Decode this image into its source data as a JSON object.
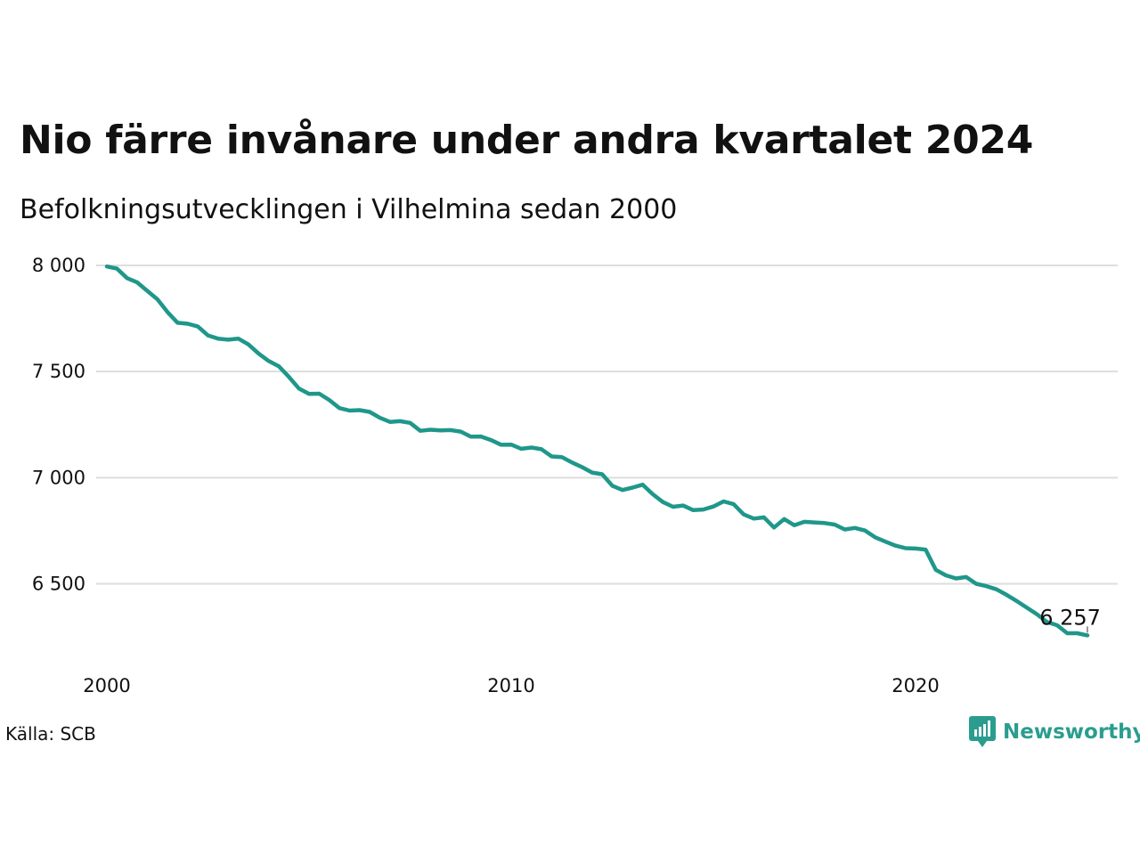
{
  "chart_data": {
    "type": "line",
    "title": "Nio färre invånare under andra kvartalet 2024",
    "subtitle": "Befolkningsutvecklingen i Vilhelmina sedan 2000",
    "xlabel": "",
    "ylabel": "",
    "x_ticks": [
      "2000",
      "2010",
      "2020"
    ],
    "y_ticks": [
      {
        "value": 8000,
        "label": "8 000"
      },
      {
        "value": 7500,
        "label": "7 500"
      },
      {
        "value": 7000,
        "label": "7 000"
      },
      {
        "value": 6500,
        "label": "6 500"
      }
    ],
    "xlim": [
      2000,
      2025
    ],
    "ylim": [
      6200,
      8000
    ],
    "grid": true,
    "legend": "none",
    "line_color": "#1f978a",
    "series": [
      {
        "x": [
          2000.0,
          2000.25,
          2000.5,
          2000.75,
          2001.0,
          2001.25,
          2001.5,
          2001.75,
          2002.0,
          2002.25,
          2002.5,
          2002.75,
          2003.0,
          2003.25,
          2003.5,
          2003.75,
          2004.0,
          2004.25,
          2004.5,
          2004.75,
          2005.0,
          2005.25,
          2005.5,
          2005.75,
          2006.0,
          2006.25,
          2006.5,
          2006.75,
          2007.0,
          2007.25,
          2007.5,
          2007.75,
          2008.0,
          2008.25,
          2008.5,
          2008.75,
          2009.0,
          2009.25,
          2009.5,
          2009.75,
          2010.0,
          2010.25,
          2010.5,
          2010.75,
          2011.0,
          2011.25,
          2011.5,
          2011.75,
          2012.0,
          2012.25,
          2012.5,
          2012.75,
          2013.0,
          2013.25,
          2013.5,
          2013.75,
          2014.0,
          2014.25,
          2014.5,
          2014.75,
          2015.0,
          2015.25,
          2015.5,
          2015.75,
          2016.0,
          2016.25,
          2016.5,
          2016.75,
          2017.0,
          2017.25,
          2017.5,
          2017.75,
          2018.0,
          2018.25,
          2018.5,
          2018.75,
          2019.0,
          2019.25,
          2019.5,
          2019.75,
          2020.0,
          2020.25,
          2020.5,
          2020.75,
          2021.0,
          2021.25,
          2021.5,
          2021.75,
          2022.0,
          2022.25,
          2022.5,
          2022.75,
          2023.0,
          2023.25,
          2023.5,
          2023.75,
          2024.0,
          2024.25
        ],
        "values": [
          7995,
          7985,
          7940,
          7920,
          7880,
          7840,
          7780,
          7730,
          7725,
          7712,
          7670,
          7655,
          7650,
          7655,
          7628,
          7585,
          7550,
          7525,
          7475,
          7420,
          7395,
          7396,
          7366,
          7328,
          7316,
          7318,
          7310,
          7282,
          7263,
          7266,
          7258,
          7221,
          7226,
          7223,
          7224,
          7217,
          7193,
          7194,
          7177,
          7155,
          7156,
          7136,
          7142,
          7134,
          7100,
          7097,
          7072,
          7050,
          7024,
          7016,
          6962,
          6942,
          6953,
          6967,
          6922,
          6885,
          6863,
          6869,
          6847,
          6850,
          6864,
          6888,
          6875,
          6827,
          6807,
          6813,
          6765,
          6805,
          6776,
          6792,
          6789,
          6786,
          6779,
          6756,
          6763,
          6751,
          6719,
          6699,
          6680,
          6668,
          6666,
          6661,
          6566,
          6540,
          6525,
          6532,
          6500,
          6489,
          6474,
          6448,
          6419,
          6388,
          6357,
          6320,
          6305,
          6267,
          6267,
          6257
        ]
      }
    ],
    "annotation": {
      "label": "6 257",
      "x": 2024.25,
      "y": 6257
    }
  },
  "footer": {
    "source": "Källa: SCB",
    "brand": "Newsworthy",
    "brand_color": "#2a9d8f",
    "brand_icon": "newsworthy-logo-icon"
  }
}
